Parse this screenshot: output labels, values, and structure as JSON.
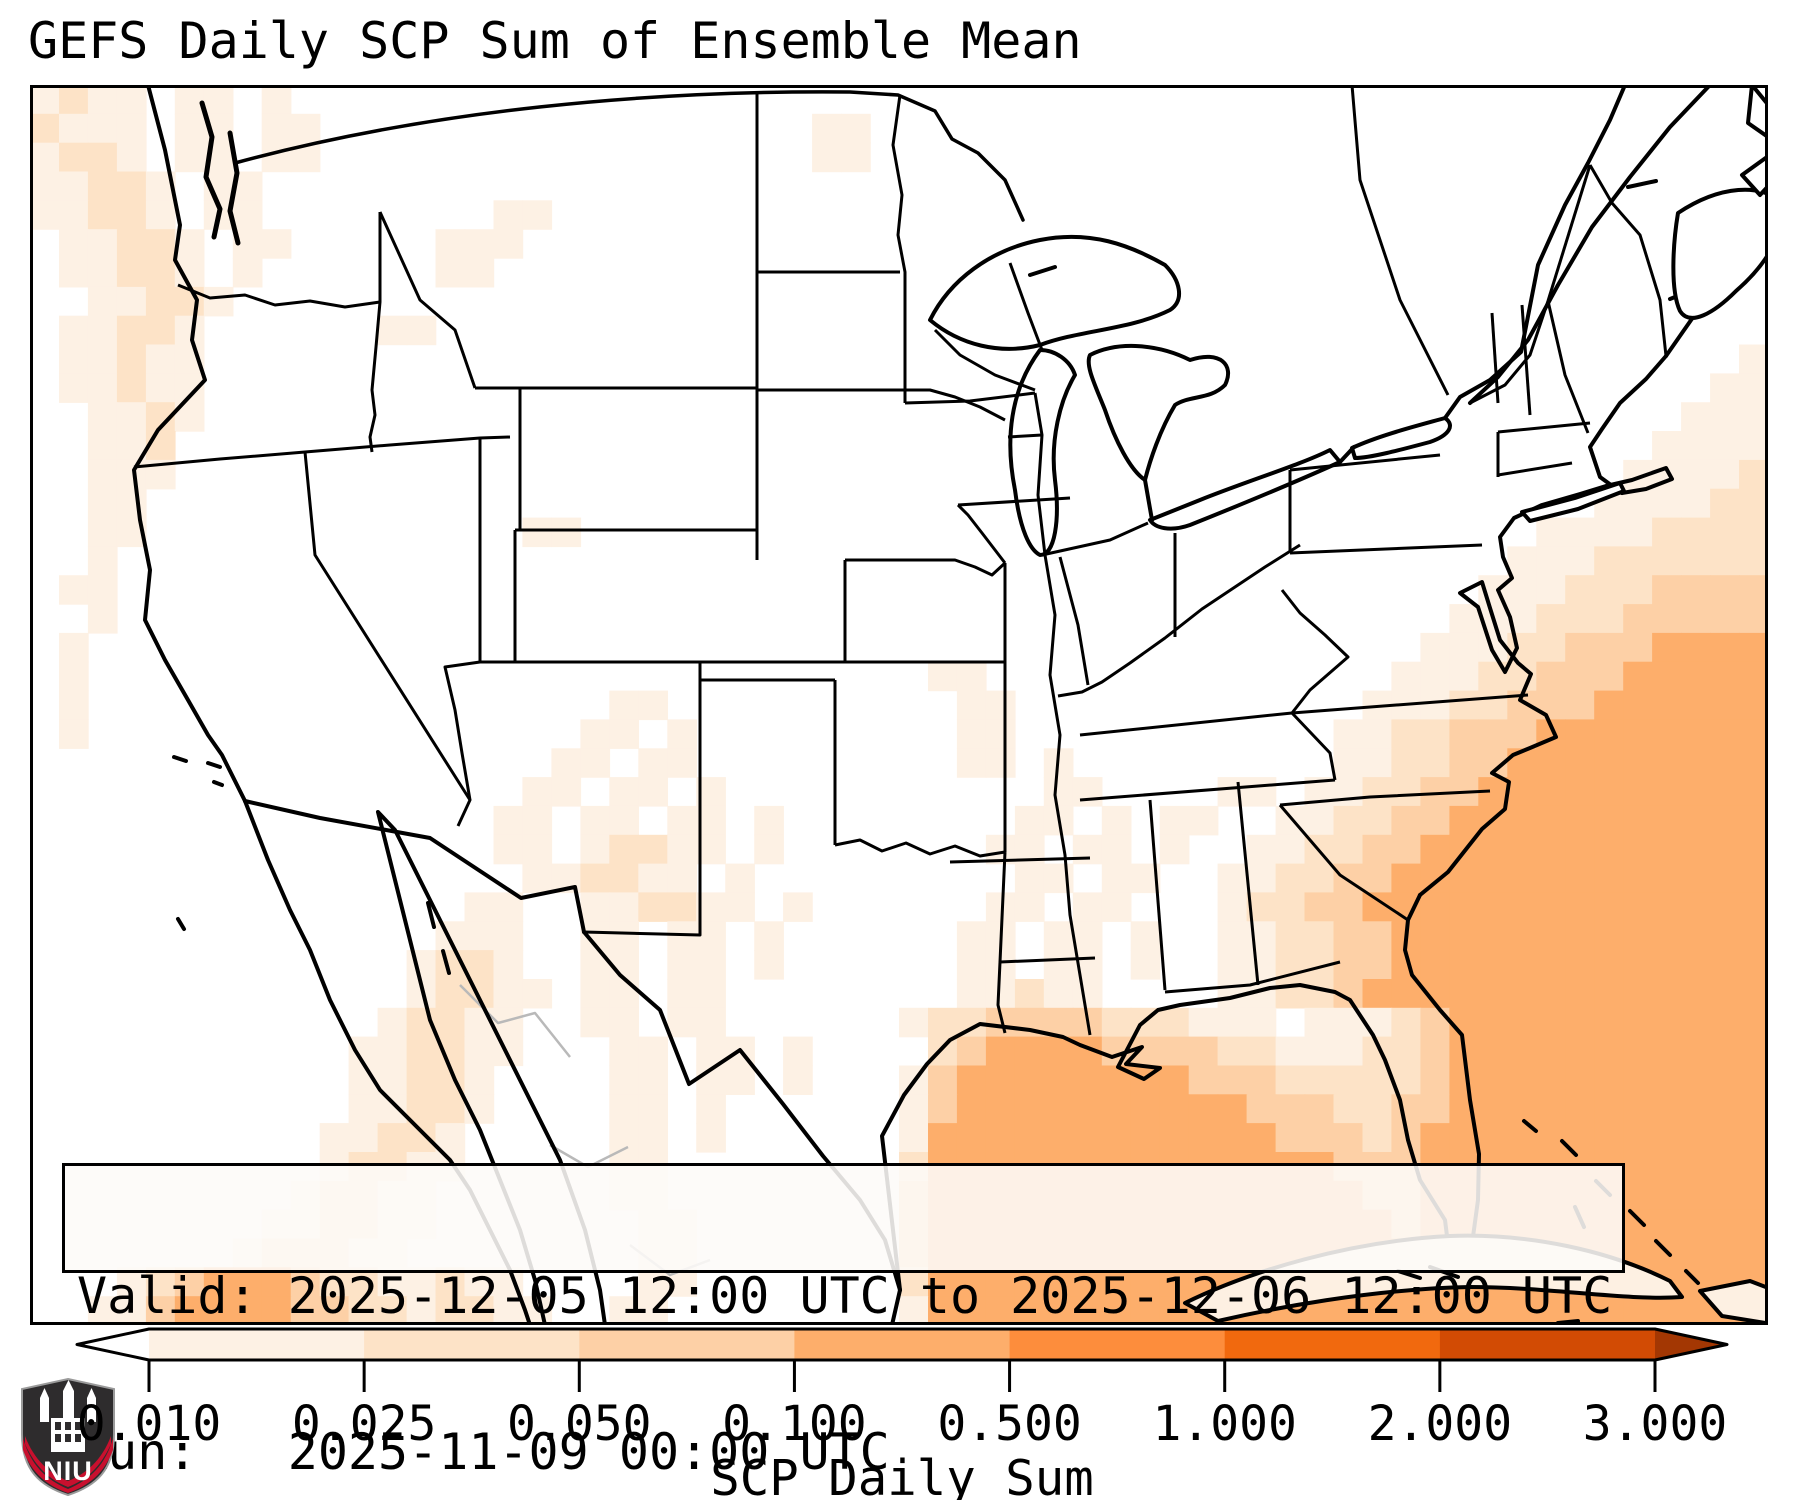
{
  "title": "GEFS Daily SCP Sum of Ensemble Mean",
  "info_box": {
    "line1": "Valid: 2025-12-05 12:00 UTC to 2025-12-06 12:00 UTC",
    "line2": "Run:   2025-11-09 00:00 UTC"
  },
  "logo": {
    "text": "NIU",
    "red": "#c8102e",
    "dark": "#2e2c2d"
  },
  "chart_data": {
    "type": "heatmap",
    "title": "GEFS Daily SCP Sum of Ensemble Mean",
    "valid": "2025-12-05 12:00 UTC to 2025-12-06 12:00 UTC",
    "run": "2025-11-09 00:00 UTC",
    "colorbar": {
      "label": "SCP Daily Sum",
      "ticks": [
        "0.010",
        "0.025",
        "0.050",
        "0.100",
        "0.500",
        "1.000",
        "2.000",
        "3.000"
      ],
      "segment_colors": [
        "#fdf1e4",
        "#fde3c7",
        "#fdd0a6",
        "#fdae6b",
        "#fd8d3c",
        "#f1690e",
        "#d24b04"
      ],
      "under_color": "#ffffff",
      "over_color": "#a33703",
      "extend": "both"
    },
    "palette": [
      "",
      "#fdf1e4",
      "#fde3c7",
      "#fdd0a6",
      "#fdae6b",
      "#fd8d3c"
    ],
    "grid_cols": 60,
    "grid_rows": 43,
    "grid": [
      [
        "1211011010",
        50
      ],
      [
        "2111011011",
        17,
        "11",
        31
      ],
      [
        "1221011011",
        17,
        "11",
        31
      ],
      [
        "1122101100",
        50
      ],
      [
        "112210110",
        6,
        "011",
        42
      ],
      [
        "011221011",
        5,
        "111",
        43
      ],
      [
        "01122101",
        5,
        "011",
        44
      ],
      [
        "00112210",
        52
      ],
      [
        "0112210",
        5,
        "11",
        46
      ],
      [
        "0112110",
        52,
        "1"
      ],
      [
        "011211",
        52,
        "11"
      ],
      [
        "001121",
        50,
        "0111"
      ],
      [
        "00112",
        50,
        "01111"
      ],
      [
        "00111",
        49,
        "011112"
      ],
      [
        "0011",
        48,
        "00111122"
      ],
      [
        "0011",
        13,
        "11",
        32,
        "011112222"
      ],
      [
        "001",
        47,
        "0111222222"
      ],
      [
        "011",
        46,
        "01112223333"
      ],
      [
        "001",
        45,
        "011122233333"
      ],
      [
        "01",
        45,
        "0111223334444"
      ],
      [
        "01",
        29,
        "110",
        12,
        "01112233344444"
      ],
      [
        "01",
        17,
        "0110",
        8,
        "0110",
        10,
        "011122333444444"
      ],
      [
        "01",
        16,
        "011010",
        7,
        "01100",
        9,
        "112233344444444"
      ],
      [
        "00",
        15,
        "01101100",
        6,
        "011010",
        7,
        "0112233444444444"
      ],
      [
        "00",
        14,
        "0110110100",
        8,
        "011000011",
        "01122334444444444"
      ],
      [
        "00",
        13,
        "011011011010",
        6,
        "0110101100",
        "11223344444444444"
      ],
      [
        "00",
        13,
        "01101221101",
        6,
        "0110110100",
        "112233444444444444"
      ],
      [
        "00",
        14,
        "0112211010",
        7,
        "01101100",
        "1122334444444444444"
      ],
      [
        "00",
        12,
        "0110",
        "01122110100",
        3,
        "0110110",
        "00",
        "1223344444444444444"
      ],
      [
        "00",
        11,
        "011100",
        "110110100",
        3,
        "0110110100",
        "1122334444444444444"
      ],
      [
        "00",
        10,
        "0122100",
        "11011010",
        4,
        "0110110100",
        "1122334444444444444"
      ],
      [
        "00",
        10,
        "0122110",
        "1101100",
        5,
        "011211",
        4,
        "1122344444444444444"
      ],
      [
        "00",
        9,
        "01221100",
        "110110",
        5,
        "12",
        "233332",
        "2211",
        "10",
        "11",
        "12",
        "344444444444"
      ],
      [
        "00",
        8,
        "011221100",
        "011011010000",
        "23444433332211",
        "122",
        "344444444444"
      ],
      [
        "00",
        8,
        "011221000",
        "01101101000",
        "1",
        "34444444433322",
        "2223",
        "44444444444"
      ],
      [
        "00",
        8,
        "011221",
        3,
        "0110100",
        4,
        "13",
        "444444444433",
        "3223",
        "344444444444"
      ],
      [
        "00",
        7,
        "0112210",
        3,
        "011010",
        5,
        "14444444444443",
        "3323",
        "444444444444"
      ],
      [
        "00",
        7,
        "0122110",
        3,
        "01100",
        6,
        "24444444444444",
        "4333",
        "444444444444"
      ],
      [
        "00",
        6,
        "01221100",
        4,
        "1100",
        6,
        "34444444444444",
        "4433",
        "444444444444"
      ],
      [
        "00",
        6,
        "11221100",
        5,
        "110",
        6,
        "34444444444444",
        "4443",
        "444444444444"
      ],
      [
        "00",
        5,
        "122211000",
        5,
        "11",
        7,
        "34444444444444",
        "444",
        "4444444444444"
      ],
      [
        "0001",
        "2344432211",
        "2110000",
        "110",
        6,
        "24444444444444",
        "4444444444444444"
      ],
      [
        "0011",
        "3444433221",
        "221100",
        "11",
        8,
        "14444444444444",
        "4444444444444444"
      ]
    ]
  }
}
